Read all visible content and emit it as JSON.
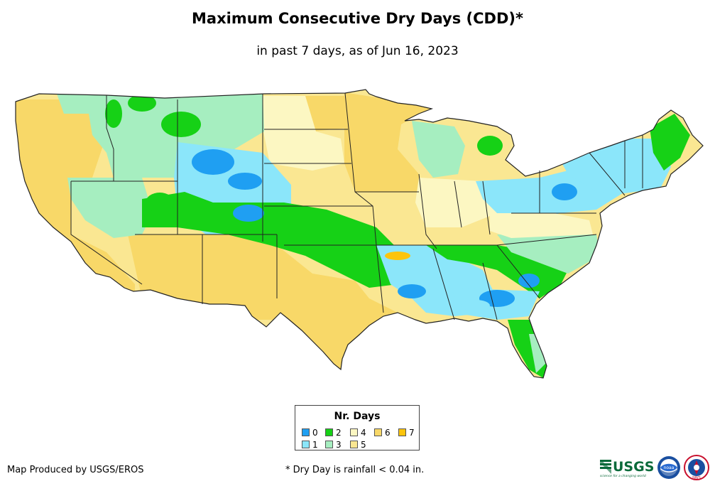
{
  "title": "Maximum Consecutive Dry Days (CDD)*",
  "subtitle": "in past 7 days, as of Jun 16, 2023",
  "legend": {
    "title": "Nr. Days",
    "items": [
      {
        "label": "0",
        "color": "#1f9ff2"
      },
      {
        "label": "1",
        "color": "#8be6fa"
      },
      {
        "label": "2",
        "color": "#16d116"
      },
      {
        "label": "3",
        "color": "#a6eec0"
      },
      {
        "label": "4",
        "color": "#fcf7c2"
      },
      {
        "label": "5",
        "color": "#fae792"
      },
      {
        "label": "6",
        "color": "#f8d868"
      },
      {
        "label": "7",
        "color": "#fcc40c"
      }
    ]
  },
  "footer": {
    "credit": "Map Produced by USGS/EROS",
    "note": "* Dry Day is rainfall < 0.04 in."
  },
  "logos": {
    "usgs": "USGS",
    "usgs_tagline": "science for a changing world",
    "noaa": "noaa",
    "nws": "NWS"
  }
}
